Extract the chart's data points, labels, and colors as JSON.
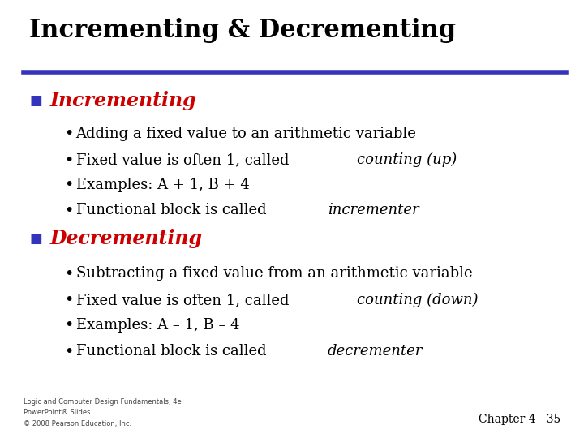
{
  "title": "Incrementing & Decrementing",
  "title_fontsize": 22,
  "title_color": "#000000",
  "title_font": "serif",
  "line_color": "#3333bb",
  "section1_header": "Incrementing",
  "section1_color": "#cc0000",
  "section1_fontsize": 17,
  "section1_italic_parts": [
    null,
    "counting (up)",
    null,
    "incrementer"
  ],
  "section1_plain_parts": [
    "Adding a fixed value to an arithmetic variable",
    "Fixed value is often 1, called ",
    "Examples: A + 1, B + 4",
    "Functional block is called "
  ],
  "section2_header": "Decrementing",
  "section2_color": "#cc0000",
  "section2_fontsize": 17,
  "section2_italic_parts": [
    null,
    "counting (down)",
    null,
    "decrementer"
  ],
  "section2_plain_parts": [
    "Subtracting a fixed value from an arithmetic variable",
    "Fixed value is often 1, called ",
    "Examples: A – 1, B – 4",
    "Functional block is called "
  ],
  "bullet_fontsize": 13,
  "bullet_color": "#000000",
  "footer_text1": "Logic and Computer Design Fundamentals, 4e",
  "footer_text2": "PowerPoint® Slides",
  "footer_text3": "© 2008 Pearson Education, Inc.",
  "footer_chapter": "Chapter 4   35",
  "bg_color": "#ffffff"
}
